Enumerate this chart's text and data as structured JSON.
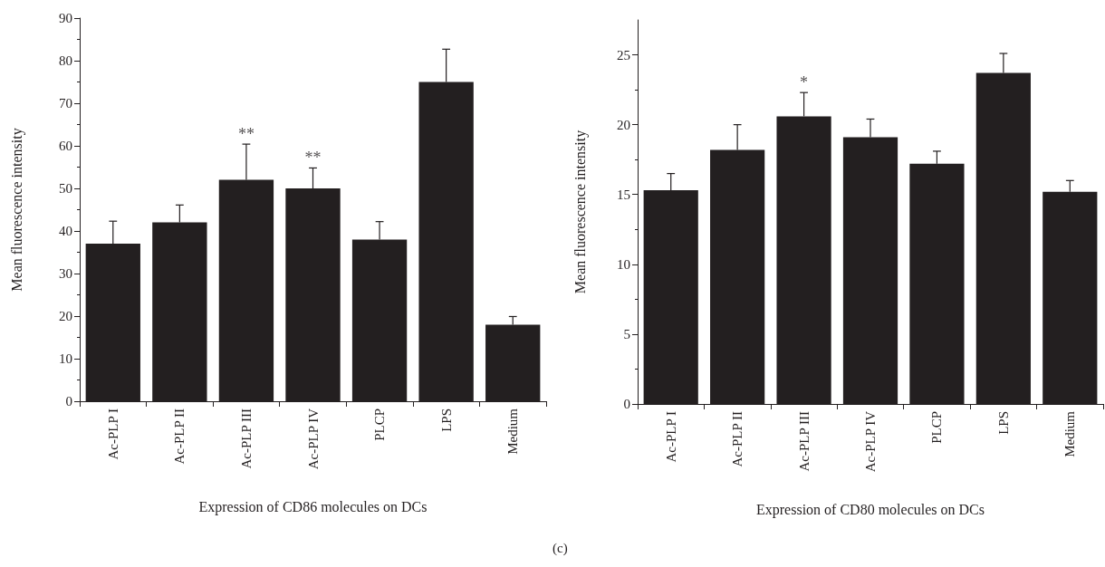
{
  "chart_data": [
    {
      "type": "bar",
      "categories": [
        "Ac-PLP I",
        "Ac-PLP II",
        "Ac-PLP III",
        "Ac-PLP IV",
        "PLCP",
        "LPS",
        "Medium"
      ],
      "values": [
        37,
        42,
        52,
        50,
        38,
        75,
        18
      ],
      "color": "#231f20",
      "errors": [
        [
          37,
          42.3
        ],
        [
          42,
          46.1
        ],
        [
          52,
          60.4
        ],
        [
          50,
          54.8
        ],
        [
          38,
          42.2
        ],
        [
          75,
          82.7
        ],
        [
          18,
          19.9
        ]
      ],
      "xlabel": "Expression of CD86 molecules on DCs",
      "ylabel": "Mean fluorescence intensity",
      "ylim": [
        0,
        90
      ],
      "yticks": [
        0,
        10,
        20,
        30,
        40,
        50,
        60,
        70,
        80,
        90
      ],
      "grid": false,
      "annotations": [
        {
          "text": "**",
          "x": "Ac-PLP III",
          "y": 60.4
        },
        {
          "text": "**",
          "x": "Ac-PLP IV",
          "y": 54.8
        }
      ]
    },
    {
      "type": "bar",
      "categories": [
        "Ac-PLP I",
        "Ac-PLP II",
        "Ac-PLP III",
        "Ac-PLP IV",
        "PLCP",
        "LPS",
        "Medium"
      ],
      "values": [
        15.3,
        18.2,
        20.6,
        19.1,
        17.2,
        23.7,
        15.2
      ],
      "color": "#231f20",
      "errors": [
        [
          15.3,
          16.5
        ],
        [
          18.2,
          20.0
        ],
        [
          20.6,
          22.3
        ],
        [
          19.1,
          20.4
        ],
        [
          17.2,
          18.1
        ],
        [
          23.7,
          25.1
        ],
        [
          15.2,
          16.0
        ]
      ],
      "xlabel": "Expression of CD80 molecules on DCs",
      "ylabel": "Mean fluorescence intensity",
      "ylim": [
        0,
        27.5
      ],
      "yticks": [
        0,
        5,
        10,
        15,
        20,
        25
      ],
      "grid": false,
      "annotations": [
        {
          "text": "*",
          "x": "Ac-PLP III",
          "y": 22.3
        },
        "(c)"
      ]
    }
  ]
}
